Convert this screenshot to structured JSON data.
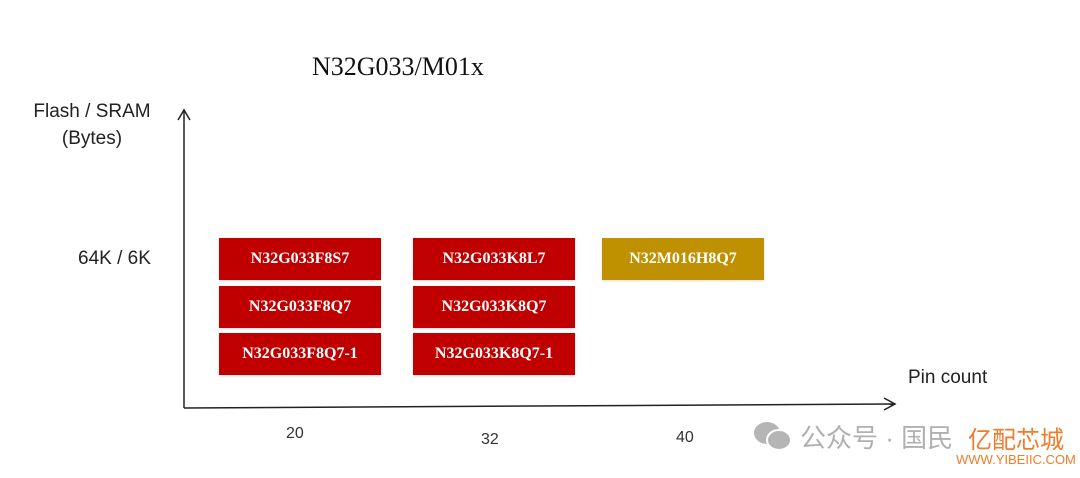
{
  "title": "N32G033/M01x",
  "y_axis": {
    "label_line1": "Flash / SRAM",
    "label_line2": "(Bytes)",
    "tick": "64K / 6K"
  },
  "x_axis": {
    "label": "Pin count",
    "ticks": [
      "20",
      "32",
      "40"
    ]
  },
  "parts": {
    "col20": [
      "N32G033F8S7",
      "N32G033F8Q7",
      "N32G033F8Q7-1"
    ],
    "col32": [
      "N32G033K8L7",
      "N32G033K8Q7",
      "N32G033K8Q7-1"
    ],
    "col40": [
      "N32M016H8Q7"
    ]
  },
  "colors": {
    "n32g": "#c00000",
    "n32m": "#bf9000"
  },
  "watermark": {
    "text": "公众号 · 国民",
    "brand": "亿配芯城",
    "url": "WWW.YIBEIIC.COM"
  }
}
